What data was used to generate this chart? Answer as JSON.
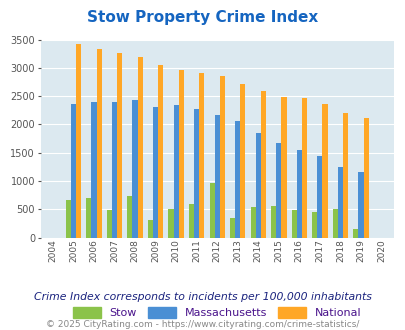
{
  "title": "Stow Property Crime Index",
  "years": [
    2004,
    2005,
    2006,
    2007,
    2008,
    2009,
    2010,
    2011,
    2012,
    2013,
    2014,
    2015,
    2016,
    2017,
    2018,
    2019,
    2020
  ],
  "stow": [
    0,
    660,
    700,
    490,
    730,
    305,
    510,
    600,
    960,
    350,
    535,
    555,
    490,
    455,
    510,
    155,
    0
  ],
  "massachusetts": [
    0,
    2370,
    2395,
    2390,
    2430,
    2300,
    2350,
    2265,
    2160,
    2055,
    1855,
    1670,
    1545,
    1450,
    1255,
    1165,
    0
  ],
  "national": [
    0,
    3420,
    3330,
    3260,
    3200,
    3045,
    2960,
    2915,
    2860,
    2710,
    2590,
    2490,
    2460,
    2370,
    2200,
    2110,
    0
  ],
  "color_stow": "#8bc34a",
  "color_mass": "#4a8fd4",
  "color_national": "#ffa726",
  "bg_color": "#dce9f0",
  "ylim": [
    0,
    3500
  ],
  "yticks": [
    0,
    500,
    1000,
    1500,
    2000,
    2500,
    3000,
    3500
  ],
  "legend_label_color": "#4a148c",
  "subtitle": "Crime Index corresponds to incidents per 100,000 inhabitants",
  "footer": "© 2025 CityRating.com - https://www.cityrating.com/crime-statistics/",
  "title_color": "#1565c0",
  "subtitle_color": "#1a237e",
  "footer_color": "#888888"
}
